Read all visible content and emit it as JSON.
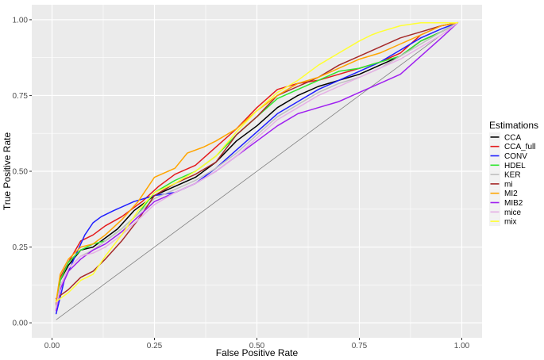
{
  "chart_data": {
    "type": "line",
    "title": "",
    "xlabel": "False Positive Rate",
    "ylabel": "True Positive Rate",
    "xlim": [
      0,
      1
    ],
    "ylim": [
      0,
      1
    ],
    "x_ticks": [
      "0.00",
      "0.25",
      "0.50",
      "0.75",
      "1.00"
    ],
    "y_ticks": [
      "0.00",
      "0.25",
      "0.50",
      "0.75",
      "1.00"
    ],
    "grid": true,
    "legend": {
      "title": "Estimations",
      "placement": "right"
    },
    "reference_line": {
      "x": [
        0.01,
        0.99
      ],
      "y": [
        0.01,
        0.99
      ],
      "color": "#808080"
    },
    "series": [
      {
        "name": "CCA",
        "color": "#000000",
        "x": [
          0.01,
          0.02,
          0.04,
          0.07,
          0.1,
          0.13,
          0.16,
          0.2,
          0.25,
          0.3,
          0.35,
          0.4,
          0.45,
          0.5,
          0.55,
          0.6,
          0.65,
          0.7,
          0.75,
          0.8,
          0.85,
          0.9,
          0.95,
          0.99
        ],
        "y": [
          0.05,
          0.14,
          0.19,
          0.24,
          0.25,
          0.28,
          0.31,
          0.37,
          0.42,
          0.45,
          0.48,
          0.53,
          0.6,
          0.65,
          0.71,
          0.75,
          0.78,
          0.8,
          0.82,
          0.85,
          0.88,
          0.93,
          0.96,
          0.99
        ]
      },
      {
        "name": "CCA_full",
        "color": "#e41a1c",
        "x": [
          0.01,
          0.02,
          0.04,
          0.07,
          0.1,
          0.13,
          0.17,
          0.22,
          0.26,
          0.3,
          0.35,
          0.4,
          0.45,
          0.5,
          0.55,
          0.6,
          0.65,
          0.7,
          0.75,
          0.8,
          0.85,
          0.9,
          0.95,
          0.99
        ],
        "y": [
          0.06,
          0.15,
          0.2,
          0.27,
          0.29,
          0.32,
          0.35,
          0.4,
          0.45,
          0.49,
          0.52,
          0.58,
          0.64,
          0.71,
          0.77,
          0.79,
          0.8,
          0.82,
          0.84,
          0.86,
          0.89,
          0.95,
          0.98,
          0.99
        ]
      },
      {
        "name": "CONV",
        "color": "#1f1fff",
        "x": [
          0.01,
          0.03,
          0.06,
          0.08,
          0.1,
          0.12,
          0.15,
          0.2,
          0.25,
          0.3,
          0.35,
          0.4,
          0.45,
          0.5,
          0.55,
          0.6,
          0.65,
          0.7,
          0.75,
          0.8,
          0.85,
          0.9,
          0.95,
          0.99
        ],
        "y": [
          0.03,
          0.14,
          0.23,
          0.29,
          0.33,
          0.35,
          0.37,
          0.4,
          0.42,
          0.43,
          0.46,
          0.51,
          0.57,
          0.63,
          0.69,
          0.73,
          0.77,
          0.8,
          0.83,
          0.86,
          0.9,
          0.94,
          0.97,
          0.99
        ]
      },
      {
        "name": "HDEL",
        "color": "#2ee62e",
        "x": [
          0.01,
          0.02,
          0.04,
          0.07,
          0.1,
          0.13,
          0.17,
          0.21,
          0.25,
          0.3,
          0.35,
          0.4,
          0.45,
          0.5,
          0.55,
          0.6,
          0.65,
          0.7,
          0.75,
          0.8,
          0.85,
          0.9,
          0.95,
          0.99
        ],
        "y": [
          0.05,
          0.14,
          0.2,
          0.24,
          0.26,
          0.27,
          0.31,
          0.36,
          0.43,
          0.47,
          0.5,
          0.55,
          0.62,
          0.68,
          0.74,
          0.77,
          0.8,
          0.83,
          0.84,
          0.86,
          0.88,
          0.93,
          0.96,
          0.99
        ]
      },
      {
        "name": "KER",
        "color": "#bfbfbf",
        "x": [
          0.01,
          0.02,
          0.04,
          0.07,
          0.1,
          0.13,
          0.17,
          0.21,
          0.25,
          0.3,
          0.35,
          0.4,
          0.45,
          0.5,
          0.55,
          0.6,
          0.65,
          0.7,
          0.75,
          0.8,
          0.85,
          0.9,
          0.95,
          0.99
        ],
        "y": [
          0.05,
          0.12,
          0.18,
          0.22,
          0.24,
          0.27,
          0.31,
          0.36,
          0.41,
          0.44,
          0.47,
          0.51,
          0.56,
          0.62,
          0.68,
          0.72,
          0.76,
          0.79,
          0.81,
          0.84,
          0.88,
          0.92,
          0.96,
          0.99
        ]
      },
      {
        "name": "mi",
        "color": "#a52a2a",
        "x": [
          0.01,
          0.02,
          0.04,
          0.07,
          0.1,
          0.13,
          0.17,
          0.21,
          0.25,
          0.3,
          0.35,
          0.4,
          0.45,
          0.5,
          0.55,
          0.6,
          0.65,
          0.7,
          0.75,
          0.8,
          0.85,
          0.9,
          0.95,
          0.99
        ],
        "y": [
          0.08,
          0.09,
          0.11,
          0.15,
          0.17,
          0.21,
          0.27,
          0.34,
          0.42,
          0.46,
          0.49,
          0.53,
          0.62,
          0.68,
          0.75,
          0.78,
          0.81,
          0.85,
          0.88,
          0.91,
          0.94,
          0.96,
          0.98,
          0.99
        ]
      },
      {
        "name": "MI2",
        "color": "#ffa500",
        "x": [
          0.01,
          0.02,
          0.04,
          0.07,
          0.1,
          0.13,
          0.17,
          0.21,
          0.25,
          0.3,
          0.33,
          0.37,
          0.4,
          0.45,
          0.5,
          0.55,
          0.6,
          0.65,
          0.7,
          0.75,
          0.8,
          0.85,
          0.9,
          0.95,
          0.99
        ],
        "y": [
          0.07,
          0.16,
          0.21,
          0.25,
          0.26,
          0.29,
          0.34,
          0.4,
          0.48,
          0.51,
          0.56,
          0.58,
          0.6,
          0.64,
          0.7,
          0.75,
          0.79,
          0.81,
          0.84,
          0.87,
          0.89,
          0.92,
          0.95,
          0.98,
          0.99
        ]
      },
      {
        "name": "MIB2",
        "color": "#9f20f0",
        "x": [
          0.01,
          0.02,
          0.04,
          0.07,
          0.1,
          0.13,
          0.17,
          0.21,
          0.25,
          0.3,
          0.35,
          0.4,
          0.45,
          0.5,
          0.55,
          0.6,
          0.65,
          0.7,
          0.75,
          0.8,
          0.85,
          0.9,
          0.95,
          0.99
        ],
        "y": [
          0.04,
          0.11,
          0.17,
          0.21,
          0.24,
          0.26,
          0.3,
          0.35,
          0.4,
          0.43,
          0.46,
          0.5,
          0.55,
          0.6,
          0.65,
          0.69,
          0.71,
          0.73,
          0.76,
          0.79,
          0.82,
          0.88,
          0.94,
          0.99
        ]
      },
      {
        "name": "mice",
        "color": "#e6b0e6",
        "x": [
          0.01,
          0.02,
          0.04,
          0.07,
          0.1,
          0.13,
          0.17,
          0.21,
          0.25,
          0.3,
          0.35,
          0.4,
          0.45,
          0.5,
          0.55,
          0.6,
          0.65,
          0.7,
          0.75,
          0.8,
          0.85,
          0.9,
          0.95,
          0.99
        ],
        "y": [
          0.05,
          0.12,
          0.18,
          0.22,
          0.23,
          0.25,
          0.29,
          0.34,
          0.39,
          0.43,
          0.46,
          0.5,
          0.55,
          0.61,
          0.67,
          0.71,
          0.75,
          0.78,
          0.81,
          0.84,
          0.87,
          0.91,
          0.95,
          0.99
        ]
      },
      {
        "name": "mix",
        "color": "#ffff33",
        "x": [
          0.01,
          0.02,
          0.04,
          0.07,
          0.1,
          0.13,
          0.17,
          0.21,
          0.25,
          0.3,
          0.35,
          0.4,
          0.45,
          0.5,
          0.55,
          0.6,
          0.65,
          0.7,
          0.75,
          0.78,
          0.8,
          0.85,
          0.9,
          0.95,
          0.99
        ],
        "y": [
          0.07,
          0.08,
          0.1,
          0.14,
          0.16,
          0.22,
          0.29,
          0.37,
          0.43,
          0.46,
          0.5,
          0.55,
          0.63,
          0.7,
          0.76,
          0.8,
          0.85,
          0.89,
          0.93,
          0.95,
          0.96,
          0.98,
          0.99,
          0.99,
          0.99
        ]
      }
    ]
  }
}
